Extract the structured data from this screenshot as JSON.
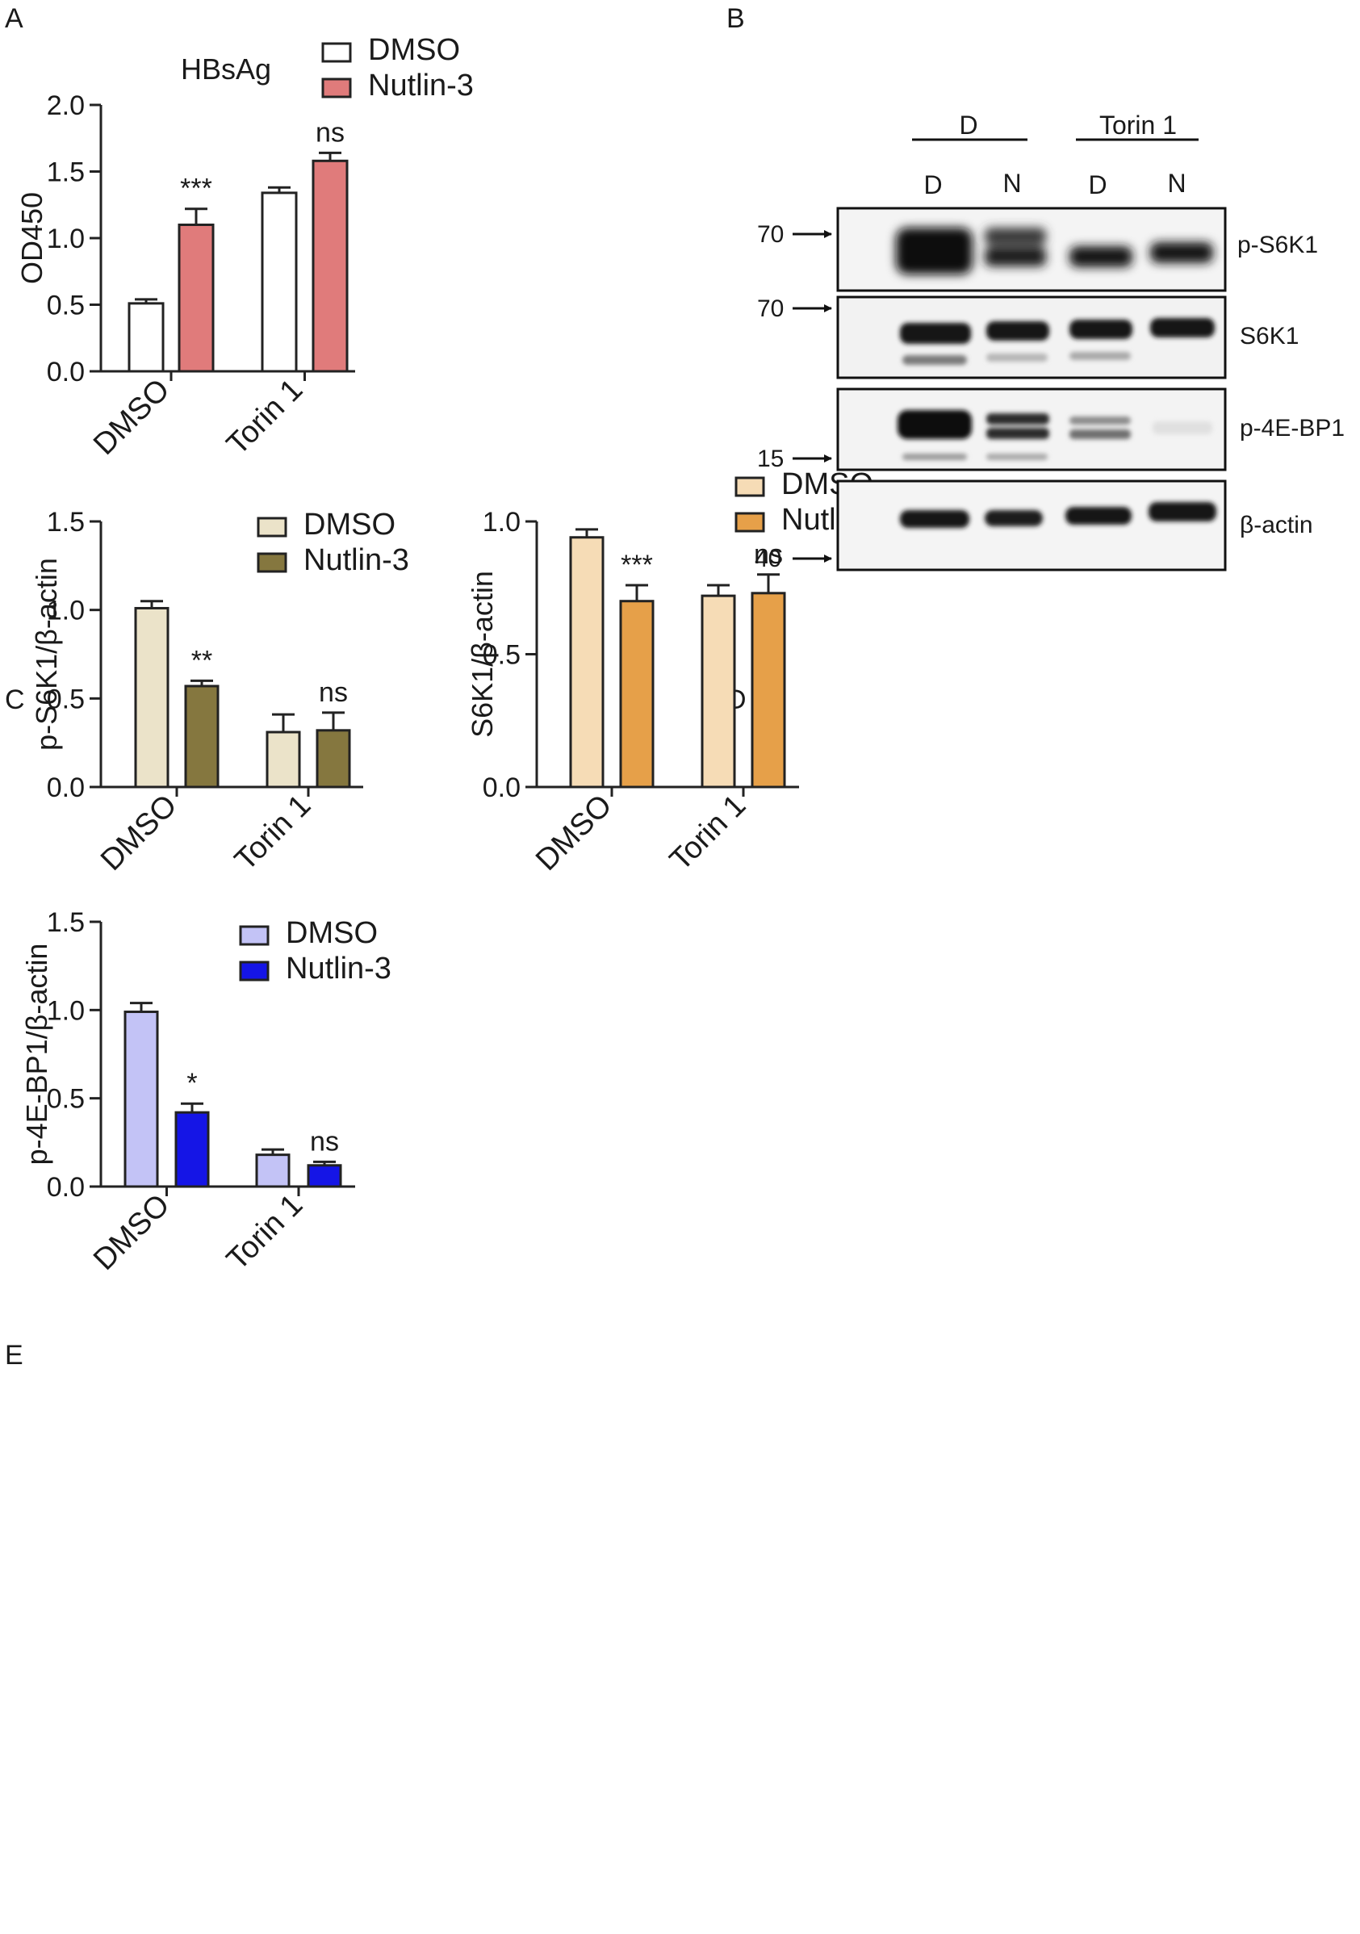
{
  "chart_data": [
    {
      "panel": "A",
      "type": "bar",
      "title": "HBsAg",
      "xlabel": "",
      "ylabel": "OD450",
      "ylim": [
        0,
        2.0
      ],
      "yticks": [
        "0.0",
        "0.5",
        "1.0",
        "1.5",
        "2.0"
      ],
      "ytick_values": [
        0,
        0.5,
        1.0,
        1.5,
        2.0
      ],
      "categories": [
        "DMSO",
        "Torin 1"
      ],
      "legend_position": "top-right",
      "series": [
        {
          "name": "DMSO",
          "color": "#ffffff",
          "values": [
            0.51,
            1.34
          ],
          "errors": [
            0.03,
            0.04
          ]
        },
        {
          "name": "Nutlin-3",
          "color": "#e07b7b",
          "values": [
            1.1,
            1.58
          ],
          "errors": [
            0.12,
            0.06
          ]
        }
      ],
      "annotations": [
        "***",
        "ns"
      ]
    },
    {
      "panel": "C",
      "type": "bar",
      "title": "",
      "xlabel": "",
      "ylabel": "p-S6K1/β-actin",
      "ylim": [
        0,
        1.5
      ],
      "yticks": [
        "0.0",
        "0.5",
        "1.0",
        "1.5"
      ],
      "ytick_values": [
        0,
        0.5,
        1.0,
        1.5
      ],
      "categories": [
        "DMSO",
        "Torin 1"
      ],
      "legend_position": "top-right",
      "series": [
        {
          "name": "DMSO",
          "color": "#ebe3c9",
          "values": [
            1.01,
            0.31
          ],
          "errors": [
            0.04,
            0.1
          ]
        },
        {
          "name": "Nutlin-3",
          "color": "#85773f",
          "values": [
            0.57,
            0.32
          ],
          "errors": [
            0.03,
            0.1
          ]
        }
      ],
      "annotations": [
        "**",
        "ns"
      ]
    },
    {
      "panel": "D",
      "type": "bar",
      "title": "",
      "xlabel": "",
      "ylabel": "S6K1/β-actin",
      "ylim": [
        0,
        1.0
      ],
      "yticks": [
        "0.0",
        "0.5",
        "1.0"
      ],
      "ytick_values": [
        0,
        0.5,
        1.0
      ],
      "categories": [
        "DMSO",
        "Torin 1"
      ],
      "legend_position": "top-right",
      "series": [
        {
          "name": "DMSO",
          "color": "#f6dcb6",
          "values": [
            0.94,
            0.72
          ],
          "errors": [
            0.03,
            0.04
          ]
        },
        {
          "name": "Nutlin-3",
          "color": "#e6a049",
          "values": [
            0.7,
            0.73
          ],
          "errors": [
            0.06,
            0.07
          ]
        }
      ],
      "annotations": [
        "***",
        "ns"
      ]
    },
    {
      "panel": "E",
      "type": "bar",
      "title": "",
      "xlabel": "",
      "ylabel": "p-4E-BP1/β-actin",
      "ylim": [
        0,
        1.5
      ],
      "yticks": [
        "0.0",
        "0.5",
        "1.0",
        "1.5"
      ],
      "ytick_values": [
        0,
        0.5,
        1.0,
        1.5
      ],
      "categories": [
        "DMSO",
        "Torin 1"
      ],
      "legend_position": "top-right",
      "series": [
        {
          "name": "DMSO",
          "color": "#c3c3f6",
          "values": [
            0.99,
            0.18
          ],
          "errors": [
            0.05,
            0.03
          ]
        },
        {
          "name": "Nutlin-3",
          "color": "#1515e6",
          "values": [
            0.42,
            0.12
          ],
          "errors": [
            0.05,
            0.02
          ]
        }
      ],
      "annotations": [
        "*",
        "ns"
      ]
    }
  ],
  "blot": {
    "panel": "B",
    "groups": [
      "D",
      "Torin 1"
    ],
    "lanes": [
      "D",
      "N",
      "D",
      "N"
    ],
    "rows": [
      {
        "label": "p-S6K1",
        "marker": "70"
      },
      {
        "label": "S6K1",
        "marker": "70"
      },
      {
        "label": "p-4E-BP1",
        "marker": "15"
      },
      {
        "label": "β-actin",
        "marker": "40"
      }
    ]
  }
}
